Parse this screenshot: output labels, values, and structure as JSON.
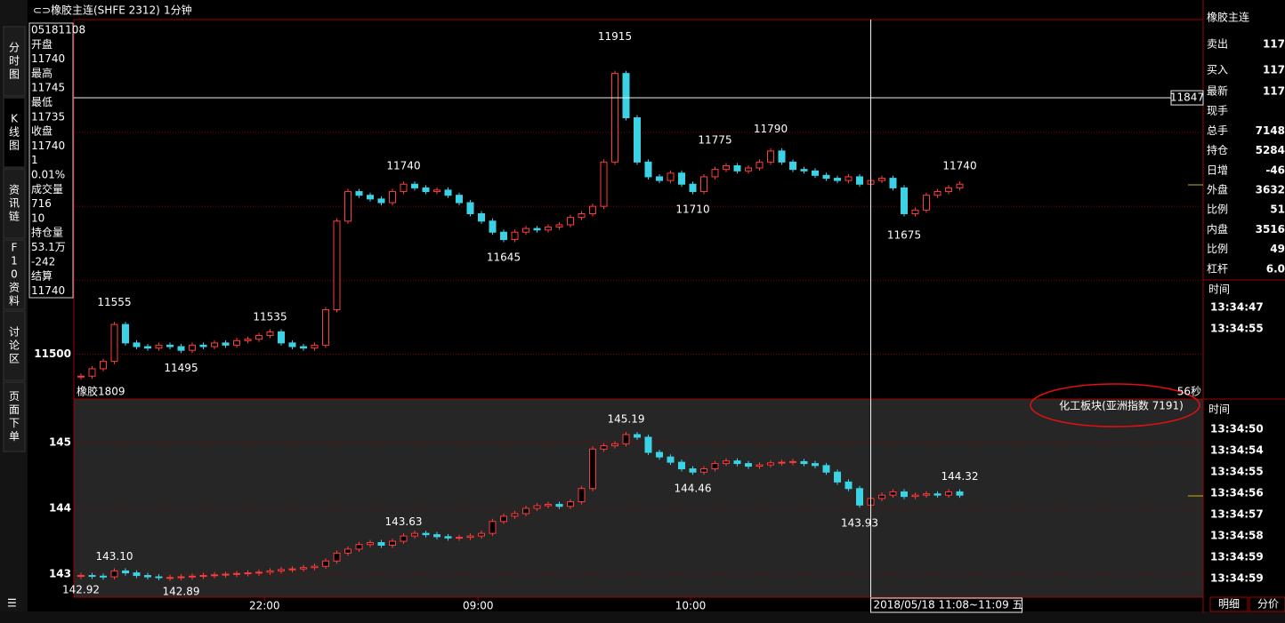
{
  "toolbar": {
    "title": "橡胶主连(SHFE 2312)",
    "period": "1分钟"
  },
  "sidebar_tabs": [
    "分时图",
    "K线图",
    "资讯链",
    "F10资料",
    "讨论区",
    "页面下单"
  ],
  "info_panel": [
    {
      "text": "05181108",
      "color": "#ffffff"
    },
    {
      "text": "开盘",
      "color": "#ffffff"
    },
    {
      "text": "11740",
      "color": "#ff3c3c"
    },
    {
      "text": "最高",
      "color": "#ffffff"
    },
    {
      "text": "11745",
      "color": "#ff3c3c"
    },
    {
      "text": "最低",
      "color": "#ffffff"
    },
    {
      "text": "11735",
      "color": "#3cdc3c"
    },
    {
      "text": "收盘",
      "color": "#ffffff"
    },
    {
      "text": "11740",
      "color": "#ff3c3c"
    },
    {
      "text": "1",
      "color": "#ff3c3c"
    },
    {
      "text": "0.01%",
      "color": "#ff3c3c"
    },
    {
      "text": "成交量",
      "color": "#ffffff"
    },
    {
      "text": "716",
      "color": "#e6c830"
    },
    {
      "text": "10",
      "color": "#ff3c3c"
    },
    {
      "text": "持仓量",
      "color": "#ffffff"
    },
    {
      "text": "53.1万",
      "color": "#e6c830"
    },
    {
      "text": "-242",
      "color": "#3cdc3c"
    },
    {
      "text": "结算",
      "color": "#ffffff"
    },
    {
      "text": "11740",
      "color": "#e6c830"
    }
  ],
  "chart_data": [
    {
      "type": "candlestick",
      "name": "橡胶1809",
      "values": [
        11470,
        11480,
        11490,
        11540,
        11515,
        11510,
        11508,
        11512,
        11510,
        11505,
        11512,
        11510,
        11515,
        11512,
        11518,
        11520,
        11525,
        11530,
        11515,
        11510,
        11508,
        11512,
        11560,
        11680,
        11720,
        11715,
        11710,
        11705,
        11720,
        11730,
        11725,
        11720,
        11722,
        11715,
        11705,
        11690,
        11680,
        11665,
        11655,
        11665,
        11670,
        11668,
        11672,
        11675,
        11685,
        11690,
        11700,
        11760,
        11880,
        11820,
        11760,
        11740,
        11735,
        11745,
        11730,
        11720,
        11740,
        11750,
        11755,
        11748,
        11752,
        11760,
        11775,
        11760,
        11750,
        11748,
        11742,
        11738,
        11735,
        11740,
        11730,
        11735,
        11738,
        11725,
        11690,
        11695,
        11715,
        11720,
        11725,
        11730
      ],
      "ylim": [
        11439,
        11953
      ],
      "yticks": [
        11500
      ],
      "gridlines": [
        11500,
        11600,
        11700,
        11800
      ],
      "annotations": [
        {
          "index": 3,
          "value": 11555,
          "position": "above"
        },
        {
          "index": 9,
          "value": 11495,
          "position": "below"
        },
        {
          "index": 17,
          "value": 11535,
          "position": "above"
        },
        {
          "index": 29,
          "value": 11740,
          "position": "above"
        },
        {
          "index": 38,
          "value": 11645,
          "position": "below"
        },
        {
          "index": 48,
          "value": 11915,
          "position": "above"
        },
        {
          "index": 55,
          "value": 11710,
          "position": "below"
        },
        {
          "index": 57,
          "value": 11775,
          "position": "above"
        },
        {
          "index": 62,
          "value": 11790,
          "position": "above"
        },
        {
          "index": 74,
          "value": 11675,
          "position": "below"
        },
        {
          "index": 79,
          "value": 11740,
          "position": "above"
        }
      ],
      "crosshair": {
        "value": 11847
      },
      "countdown": "56秒"
    },
    {
      "type": "candlestick",
      "name": "化工板块(亚洲指数 7191)",
      "values": [
        142.98,
        142.97,
        142.96,
        143.05,
        143.02,
        142.98,
        142.96,
        142.95,
        142.95,
        142.96,
        142.97,
        142.98,
        142.99,
        143.0,
        143.01,
        143.02,
        143.03,
        143.05,
        143.07,
        143.08,
        143.1,
        143.12,
        143.2,
        143.32,
        143.38,
        143.45,
        143.48,
        143.44,
        143.5,
        143.58,
        143.62,
        143.6,
        143.57,
        143.55,
        143.56,
        143.58,
        143.62,
        143.8,
        143.88,
        143.92,
        144.0,
        144.04,
        144.06,
        144.03,
        144.1,
        144.3,
        144.9,
        144.95,
        144.98,
        145.12,
        145.08,
        144.85,
        144.78,
        144.7,
        144.6,
        144.55,
        144.6,
        144.68,
        144.72,
        144.68,
        144.64,
        144.66,
        144.69,
        144.7,
        144.71,
        144.68,
        144.65,
        144.55,
        144.4,
        144.3,
        144.05,
        144.15,
        144.2,
        144.25,
        144.18,
        144.2,
        144.22,
        144.2,
        144.25,
        144.2
      ],
      "ylim": [
        142.65,
        145.66
      ],
      "yticks": [
        143,
        144,
        145
      ],
      "gridlines": [
        143,
        144,
        145
      ],
      "annotations": [
        {
          "index": 3,
          "value": 143.1,
          "label": "143.10",
          "position": "above"
        },
        {
          "index": 0,
          "value": 142.92,
          "position": "below"
        },
        {
          "index": 9,
          "value": 142.89,
          "position": "below"
        },
        {
          "index": 29,
          "value": 143.63,
          "position": "above"
        },
        {
          "index": 49,
          "value": 145.19,
          "position": "above"
        },
        {
          "index": 55,
          "value": 144.46,
          "position": "below"
        },
        {
          "index": 70,
          "value": 143.93,
          "position": "below"
        },
        {
          "index": 79,
          "value": 144.32,
          "position": "above"
        }
      ]
    }
  ],
  "xticks": [
    {
      "value": 16.5,
      "label": "22:00"
    },
    {
      "value": 35.7,
      "label": "09:00"
    },
    {
      "value": 54.8,
      "label": "10:00"
    }
  ],
  "crosshair_index": 71,
  "crosshair_time": "2018/05/18 11:08~11:09 五",
  "right_panel": {
    "title": "橡胶主连",
    "quotes": [
      {
        "label": "卖出",
        "value": "117"
      },
      {
        "label": "买入",
        "value": "117"
      }
    ],
    "rows": [
      {
        "label": "最新",
        "value": "117",
        "color": "#ff3c3c"
      },
      {
        "label": "现手"
      },
      {
        "label": "总手",
        "value": "7148",
        "color": "#e6c830"
      },
      {
        "label": "持仓",
        "value": "5284",
        "color": "#e6c830"
      },
      {
        "label": "日增",
        "value": "-46",
        "color": "#e6c830"
      },
      {
        "label": "外盘",
        "value": "3632",
        "color": "#e6c830"
      },
      {
        "label": "比例",
        "value": "51",
        "color": "#e6c830"
      },
      {
        "label": "内盘",
        "value": "3516",
        "color": "#e6c830"
      },
      {
        "label": "比例",
        "value": "49",
        "color": "#e6c830"
      },
      {
        "label": "杠杆",
        "value": "6.0",
        "color": "#e6c830"
      }
    ],
    "ticks_top": {
      "header": "时间",
      "times": [
        "13:34:47",
        "13:34:55"
      ]
    },
    "ticks_bottom": {
      "header": "时间",
      "times": [
        "13:34:50",
        "13:34:54",
        "13:34:55",
        "13:34:56",
        "13:34:57",
        "13:34:58",
        "13:34:59",
        "13:34:59"
      ]
    },
    "tabs": [
      "明细",
      "分价"
    ]
  }
}
